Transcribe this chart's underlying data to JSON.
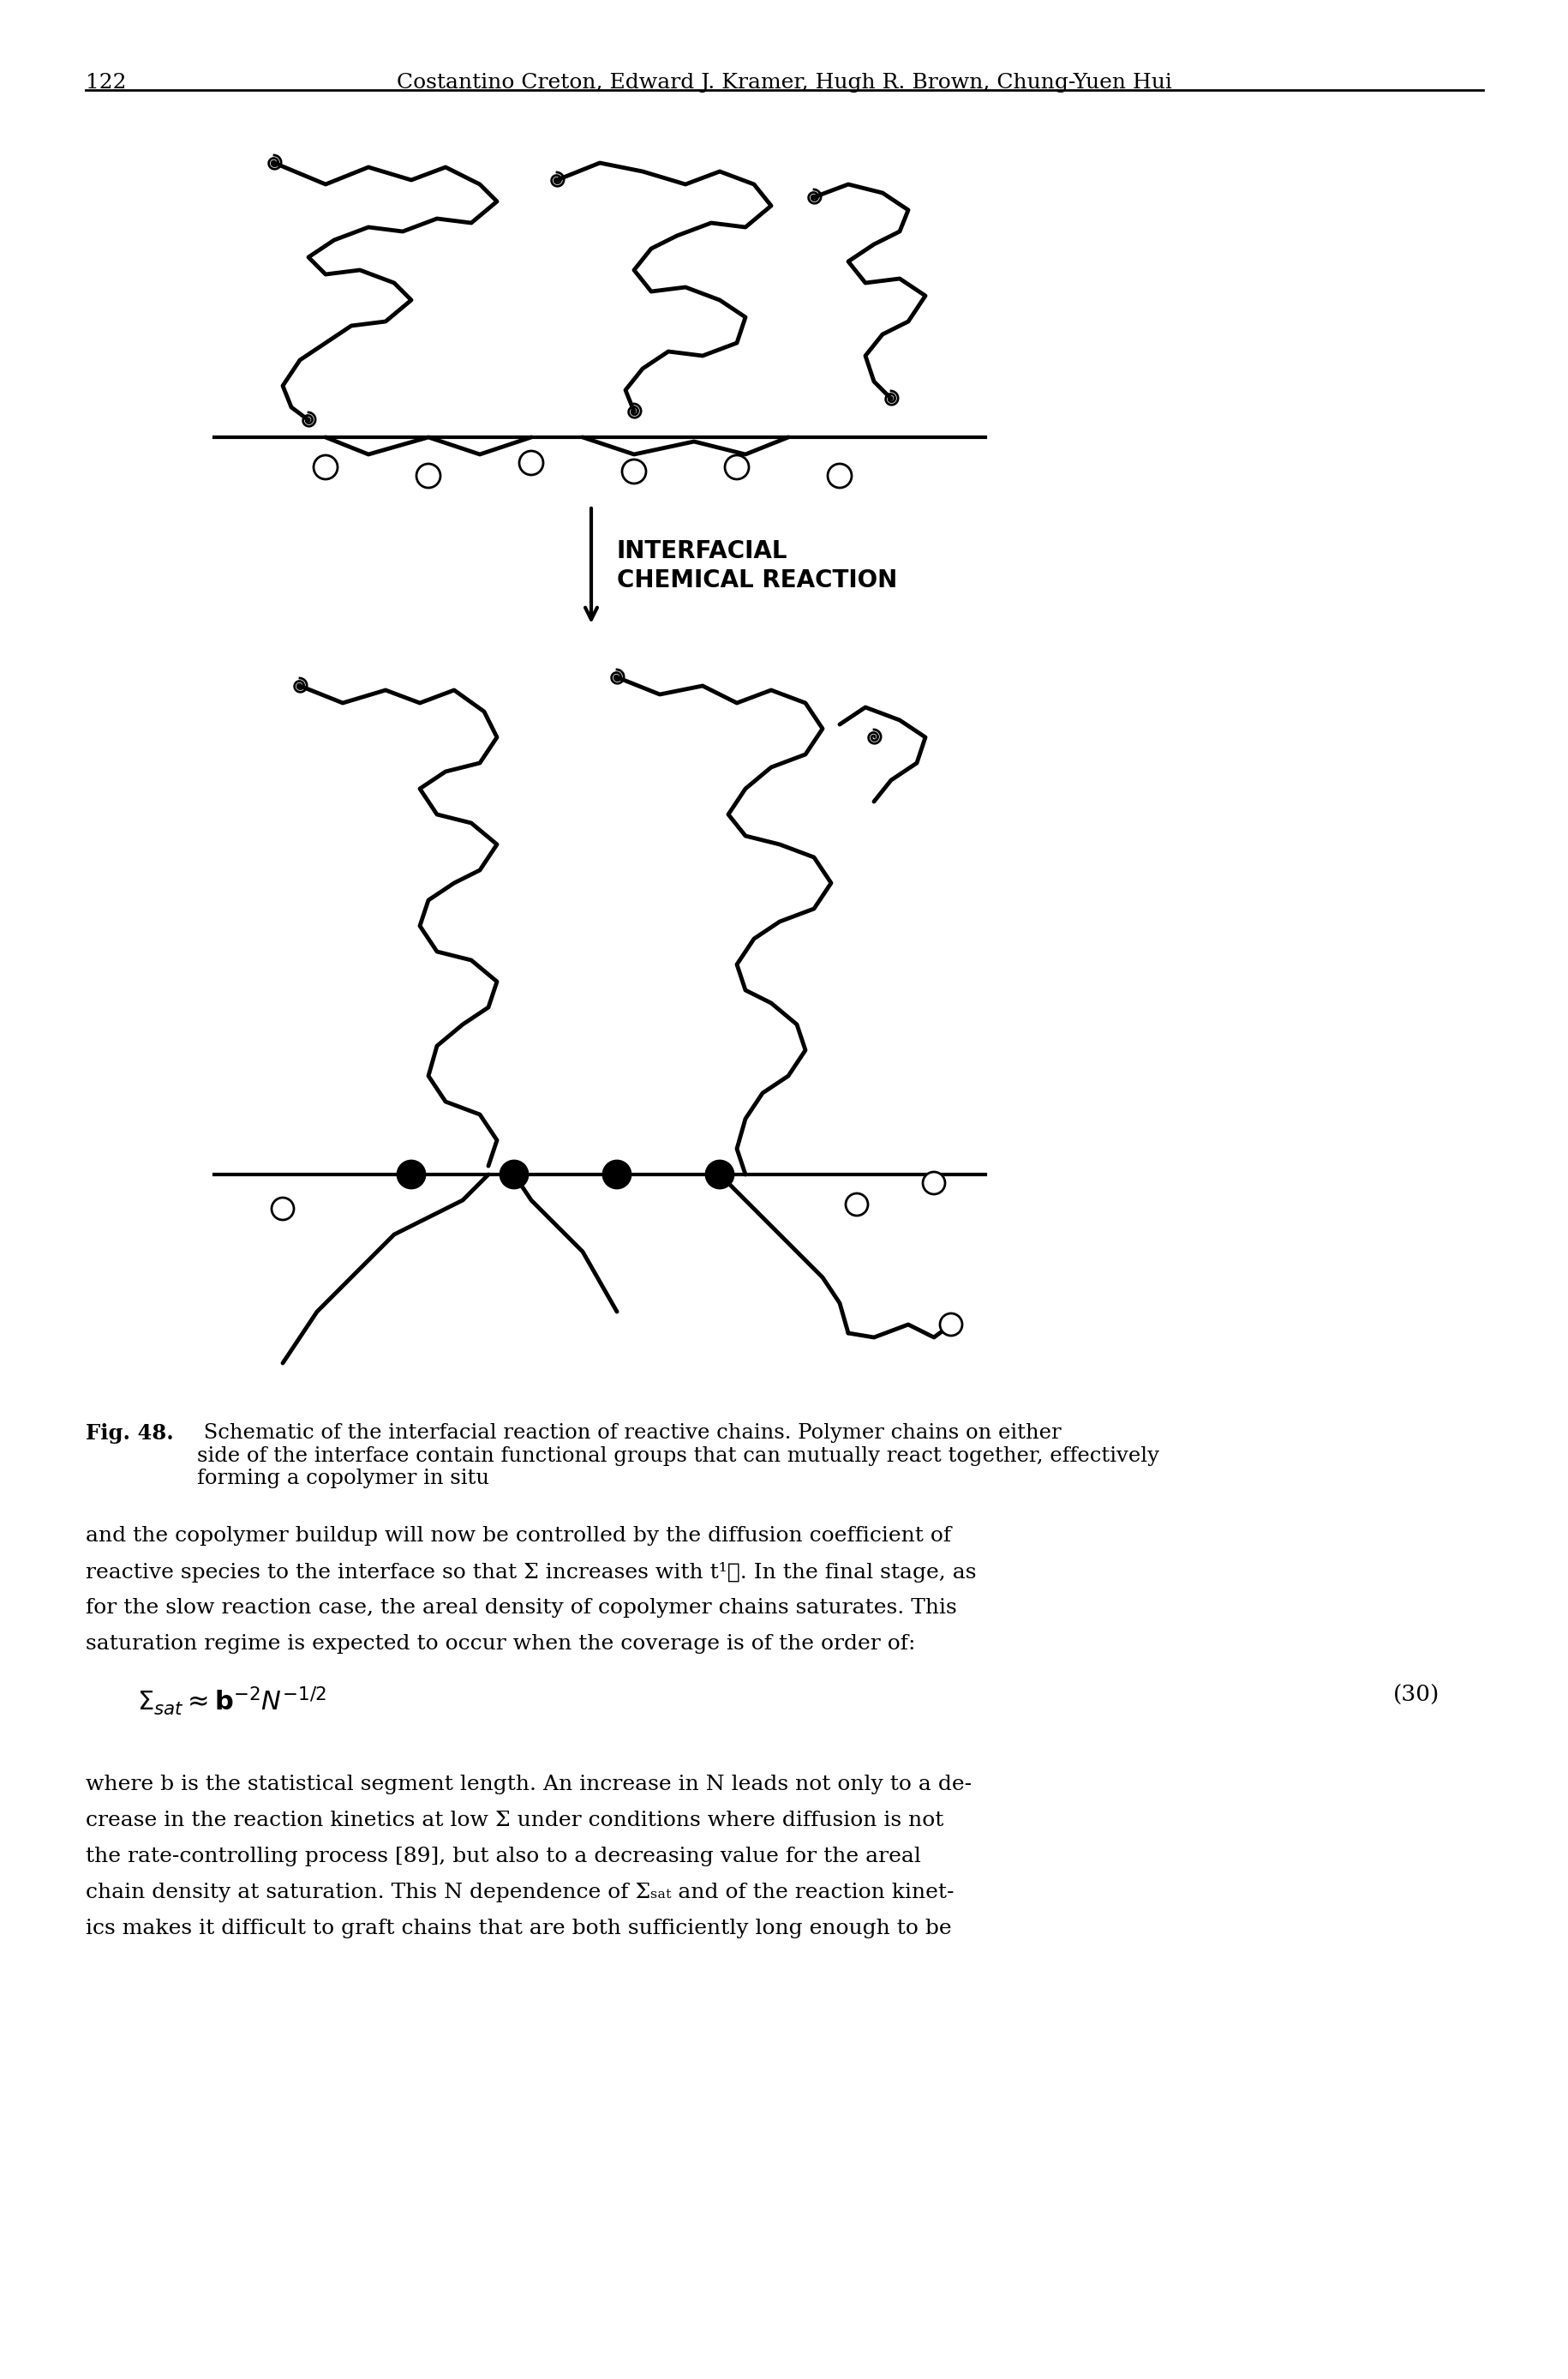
{
  "page_number": "122",
  "header_text": "Costantino Creton, Edward J. Kramer, Hugh R. Brown, Chung-Yuen Hui",
  "fig_caption_bold": "Fig. 48.",
  "fig_caption_normal": " Schematic of the interfacial reaction of reactive chains. Polymer chains on either\nside of the interface contain functional groups that can mutually react together, effectively\nforming a copolymer in situ",
  "label_text": "INTERFACIAL\nCHEMICAL REACTION",
  "body_text_lines": [
    "and the copolymer buildup will now be controlled by the diffusion coefficient of",
    "reactive species to the interface so that Σ increases with t¹˲. In the final stage, as",
    "for the slow reaction case, the areal density of copolymer chains saturates. This",
    "saturation regime is expected to occur when the coverage is of the order of:"
  ],
  "equation": "Σₛₐₜ ≈ b⁻²N⁻¹˲",
  "equation_number": "(30)",
  "body_text2_lines": [
    "where b is the statistical segment length. An increase in N leads not only to a de-",
    "crease in the reaction kinetics at low Σ under conditions where diffusion is not",
    "the rate-controlling process [89], but also to a decreasing value for the areal",
    "chain density at saturation. This N dependence of Σₛₐₜ and of the reaction kinet-",
    "ics makes it difficult to graft chains that are both sufficiently long enough to be"
  ],
  "background_color": "#ffffff",
  "text_color": "#000000"
}
